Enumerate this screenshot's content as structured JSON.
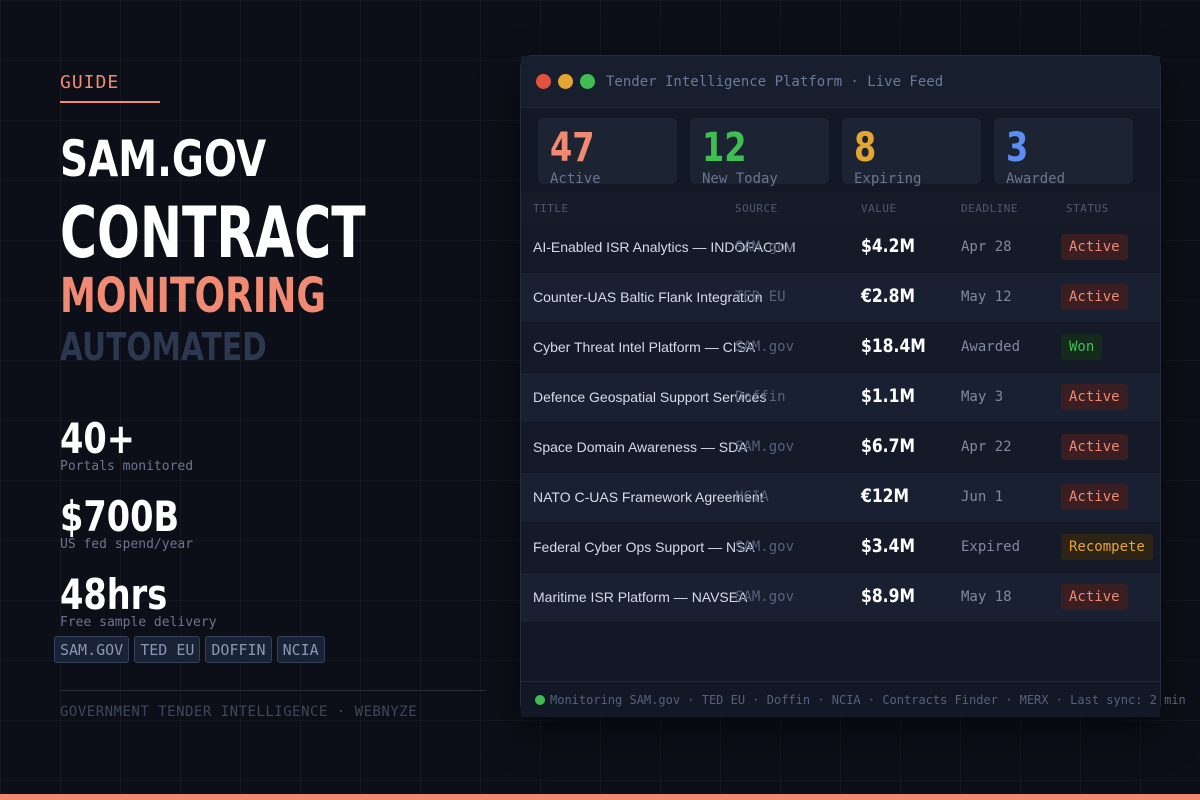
{
  "colors": {
    "accent": "#f08a72",
    "background": "#0c0f17",
    "panel": "#121826",
    "active": "#f08a72",
    "won": "#3fbf52",
    "recompete": "#e4a532",
    "blue": "#5b8ef0"
  },
  "hero": {
    "eyebrow": "GUIDE",
    "line1": "SAM.GOV",
    "line2": "CONTRACT",
    "line3": "MONITORING",
    "line4": "AUTOMATED"
  },
  "stats": [
    {
      "value": "40+",
      "label": "Portals monitored"
    },
    {
      "value": "$700B",
      "label": "US fed spend/year"
    },
    {
      "value": "48hrs",
      "label": "Free sample delivery"
    }
  ],
  "chips": [
    "SAM.GOV",
    "TED EU",
    "DOFFIN",
    "NCIA"
  ],
  "left_footer": "GOVERNMENT TENDER INTELLIGENCE  ·  WEBNYZE",
  "panel": {
    "title": "Tender Intelligence Platform  ·  Live Feed",
    "kpis": [
      {
        "value": "47",
        "label": "Active",
        "color": "#f08a72"
      },
      {
        "value": "12",
        "label": "New Today",
        "color": "#3fbf52"
      },
      {
        "value": "8",
        "label": "Expiring",
        "color": "#e4a532"
      },
      {
        "value": "3",
        "label": "Awarded",
        "color": "#5b8ef0"
      }
    ],
    "columns": [
      "TITLE",
      "SOURCE",
      "VALUE",
      "DEADLINE",
      "STATUS"
    ],
    "rows": [
      {
        "title": "AI-Enabled ISR Analytics — INDOPACOM",
        "source": "SAM.gov",
        "value": "$4.2M",
        "deadline": "Apr 28",
        "status": "Active",
        "status_type": "active"
      },
      {
        "title": "Counter-UAS Baltic Flank Integration",
        "source": "TED EU",
        "value": "€2.8M",
        "deadline": "May 12",
        "status": "Active",
        "status_type": "active"
      },
      {
        "title": "Cyber Threat Intel Platform — CISA",
        "source": "SAM.gov",
        "value": "$18.4M",
        "deadline": "Awarded",
        "status": "Won",
        "status_type": "won"
      },
      {
        "title": "Defence Geospatial Support Services",
        "source": "Doffin",
        "value": "$1.1M",
        "deadline": "May 3",
        "status": "Active",
        "status_type": "active"
      },
      {
        "title": "Space Domain Awareness — SDA",
        "source": "SAM.gov",
        "value": "$6.7M",
        "deadline": "Apr 22",
        "status": "Active",
        "status_type": "active"
      },
      {
        "title": "NATO C-UAS Framework Agreement",
        "source": "NCIA",
        "value": "€12M",
        "deadline": "Jun 1",
        "status": "Active",
        "status_type": "active"
      },
      {
        "title": "Federal Cyber Ops Support — NSA",
        "source": "SAM.gov",
        "value": "$3.4M",
        "deadline": "Expired",
        "status": "Recompete",
        "status_type": "recompete"
      },
      {
        "title": "Maritime ISR Platform — NAVSEA",
        "source": "SAM.gov",
        "value": "$8.9M",
        "deadline": "May 18",
        "status": "Active",
        "status_type": "active"
      }
    ],
    "footer": "Monitoring SAM.gov · TED EU · Doffin · NCIA · Contracts Finder · MERX  ·  Last sync: 2 min"
  }
}
